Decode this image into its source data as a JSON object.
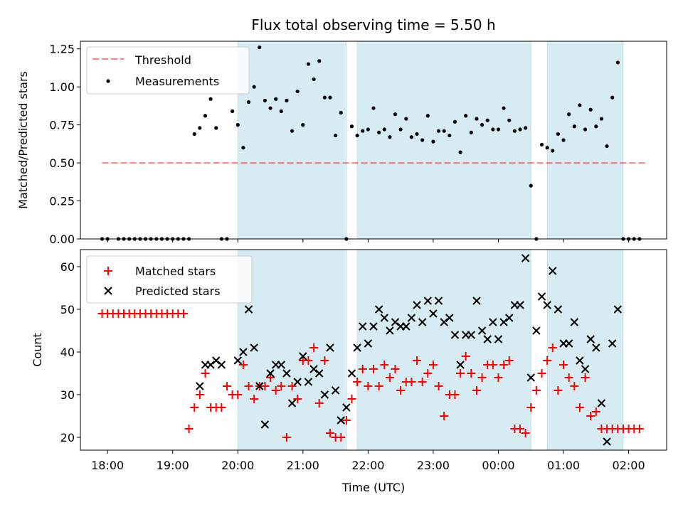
{
  "title": "Flux total observing time = 5.50 h",
  "colors": {
    "shade": "#add8e6",
    "threshold": "#ff0000",
    "measurement": "#000000",
    "matched": "#ff0000",
    "predicted": "#000000"
  },
  "chart_data": [
    {
      "type": "scatter",
      "panel": "top",
      "ylabel": "Matched/Predicted stars",
      "xlabel": "",
      "ylim": [
        0,
        1.3
      ],
      "yticks": [
        0.0,
        0.25,
        0.5,
        0.75,
        1.0,
        1.25
      ],
      "ytick_labels": [
        "0.00",
        "0.25",
        "0.50",
        "0.75",
        "1.00",
        "1.25"
      ],
      "legend": {
        "placement": "top-left",
        "entries": [
          "Threshold",
          "Measurements"
        ]
      },
      "threshold": {
        "name": "Threshold",
        "y": 0.5,
        "x_range": [
          "17:55",
          "02:15"
        ],
        "style": "dashed"
      },
      "shaded_intervals": [
        [
          "20:00",
          "21:40"
        ],
        [
          "21:50",
          "00:30"
        ],
        [
          "00:45",
          "01:55"
        ]
      ],
      "series": [
        {
          "name": "Measurements",
          "x": [
            "17:55",
            "18:00",
            "18:10",
            "18:15",
            "18:20",
            "18:25",
            "18:30",
            "18:35",
            "18:40",
            "18:45",
            "18:50",
            "18:55",
            "19:00",
            "19:05",
            "19:10",
            "19:15",
            "19:20",
            "19:25",
            "19:30",
            "19:35",
            "19:40",
            "19:45",
            "19:50",
            "19:55",
            "20:00",
            "20:05",
            "20:10",
            "20:15",
            "20:20",
            "20:25",
            "20:30",
            "20:35",
            "20:40",
            "20:45",
            "20:50",
            "20:55",
            "21:00",
            "21:05",
            "21:10",
            "21:15",
            "21:20",
            "21:25",
            "21:30",
            "21:35",
            "21:40",
            "21:45",
            "21:50",
            "21:55",
            "22:00",
            "22:05",
            "22:10",
            "22:15",
            "22:20",
            "22:25",
            "22:30",
            "22:35",
            "22:40",
            "22:45",
            "22:50",
            "22:55",
            "23:00",
            "23:05",
            "23:10",
            "23:15",
            "23:20",
            "23:25",
            "23:30",
            "23:35",
            "23:40",
            "23:45",
            "23:50",
            "23:55",
            "00:00",
            "00:05",
            "00:10",
            "00:15",
            "00:20",
            "00:25",
            "00:30",
            "00:35",
            "00:40",
            "00:45",
            "00:50",
            "00:55",
            "01:00",
            "01:05",
            "01:10",
            "01:15",
            "01:20",
            "01:25",
            "01:30",
            "01:35",
            "01:40",
            "01:45",
            "01:50",
            "01:55",
            "02:00",
            "02:05",
            "02:10"
          ],
          "y": [
            0,
            0,
            0,
            0,
            0,
            0,
            0,
            0,
            0,
            0,
            0,
            0,
            0,
            0,
            0,
            0,
            0.69,
            0.73,
            0.81,
            0.92,
            0.73,
            0,
            0,
            0.84,
            0.75,
            0.6,
            0.9,
            1.0,
            1.26,
            0.91,
            0.86,
            0.92,
            0.84,
            0.91,
            0.71,
            0.97,
            0.75,
            1.15,
            1.05,
            1.17,
            0.93,
            0.93,
            0.68,
            0.83,
            0,
            0.74,
            0.68,
            0.71,
            0.72,
            0.86,
            0.7,
            0.72,
            0.67,
            0.82,
            0.72,
            0.79,
            0.67,
            0.69,
            0.65,
            0.81,
            0.64,
            0.71,
            0.71,
            0.68,
            0.77,
            0.57,
            0.81,
            0.7,
            0.79,
            0.75,
            0.78,
            0.72,
            0.72,
            0.86,
            0.78,
            0.71,
            0.72,
            0.73,
            0.35,
            0,
            0.62,
            0.6,
            0.58,
            0.69,
            0.65,
            0.82,
            0.74,
            0.88,
            0.72,
            0.85,
            0.74,
            0.79,
            0.61,
            0.93,
            1.16,
            0,
            0,
            0,
            0
          ]
        }
      ]
    },
    {
      "type": "scatter",
      "panel": "bottom",
      "xlabel": "Time (UTC)",
      "ylabel": "Count",
      "ylim": [
        17,
        64
      ],
      "yticks": [
        20,
        30,
        40,
        50,
        60
      ],
      "ytick_labels": [
        "20",
        "30",
        "40",
        "50",
        "60"
      ],
      "xticks": [
        "18:00",
        "19:00",
        "20:00",
        "21:00",
        "22:00",
        "23:00",
        "00:00",
        "01:00",
        "02:00"
      ],
      "xlim": [
        "17:35",
        "02:35"
      ],
      "legend": {
        "placement": "top-left",
        "entries": [
          "Matched stars",
          "Predicted stars"
        ]
      },
      "shaded_intervals": [
        [
          "20:00",
          "21:40"
        ],
        [
          "21:50",
          "00:30"
        ],
        [
          "00:45",
          "01:55"
        ]
      ],
      "series": [
        {
          "name": "Matched stars",
          "marker": "plus",
          "x": [
            "17:55",
            "18:00",
            "18:05",
            "18:10",
            "18:15",
            "18:20",
            "18:25",
            "18:30",
            "18:35",
            "18:40",
            "18:45",
            "18:50",
            "18:55",
            "19:00",
            "19:05",
            "19:10",
            "19:15",
            "19:20",
            "19:25",
            "19:30",
            "19:35",
            "19:40",
            "19:45",
            "19:50",
            "19:55",
            "20:00",
            "20:05",
            "20:10",
            "20:15",
            "20:20",
            "20:25",
            "20:30",
            "20:35",
            "20:40",
            "20:45",
            "20:50",
            "20:55",
            "21:00",
            "21:05",
            "21:10",
            "21:15",
            "21:20",
            "21:25",
            "21:30",
            "21:35",
            "21:40",
            "21:45",
            "21:50",
            "21:55",
            "22:00",
            "22:05",
            "22:10",
            "22:15",
            "22:20",
            "22:25",
            "22:30",
            "22:35",
            "22:40",
            "22:45",
            "22:50",
            "22:55",
            "23:00",
            "23:05",
            "23:10",
            "23:15",
            "23:20",
            "23:25",
            "23:30",
            "23:35",
            "23:40",
            "23:45",
            "23:50",
            "23:55",
            "00:00",
            "00:05",
            "00:10",
            "00:15",
            "00:20",
            "00:25",
            "00:30",
            "00:35",
            "00:40",
            "00:45",
            "00:50",
            "00:55",
            "01:00",
            "01:05",
            "01:10",
            "01:15",
            "01:20",
            "01:25",
            "01:30",
            "01:35",
            "01:40",
            "01:45",
            "01:50",
            "01:55",
            "02:00",
            "02:05",
            "02:10"
          ],
          "y": [
            49,
            49,
            49,
            49,
            49,
            49,
            49,
            49,
            49,
            49,
            49,
            49,
            49,
            49,
            49,
            49,
            22,
            27,
            30,
            35,
            27,
            27,
            27,
            32,
            30,
            30,
            37,
            32,
            29,
            32,
            32,
            34,
            31,
            32,
            20,
            32,
            29,
            38,
            38,
            41,
            28,
            38,
            21,
            20,
            20,
            24,
            29,
            33,
            36,
            32,
            36,
            32,
            37,
            34,
            36,
            31,
            33,
            33,
            38,
            33,
            35,
            37,
            32,
            25,
            30,
            30,
            35,
            39,
            35,
            31,
            34,
            37,
            37,
            34,
            37,
            38,
            22,
            22,
            21,
            27,
            31,
            35,
            38,
            41,
            31,
            37,
            34,
            32,
            27,
            34,
            25,
            26,
            22,
            22,
            22,
            22,
            22,
            22,
            22,
            22
          ],
          "note_points": "matched"
        },
        {
          "name": "Predicted stars",
          "marker": "x",
          "x": [
            "19:25",
            "19:30",
            "19:35",
            "19:40",
            "19:45",
            "20:00",
            "20:05",
            "20:10",
            "20:15",
            "20:20",
            "20:25",
            "20:30",
            "20:35",
            "20:40",
            "20:45",
            "20:50",
            "20:55",
            "21:00",
            "21:05",
            "21:10",
            "21:15",
            "21:20",
            "21:25",
            "21:30",
            "21:35",
            "21:40",
            "21:45",
            "21:50",
            "21:55",
            "22:00",
            "22:05",
            "22:10",
            "22:15",
            "22:20",
            "22:25",
            "22:30",
            "22:35",
            "22:40",
            "22:45",
            "22:50",
            "22:55",
            "23:00",
            "23:05",
            "23:10",
            "23:15",
            "23:20",
            "23:25",
            "23:30",
            "23:35",
            "23:40",
            "23:45",
            "23:50",
            "23:55",
            "00:00",
            "00:05",
            "00:10",
            "00:15",
            "00:20",
            "00:25",
            "00:30",
            "00:35",
            "00:40",
            "00:45",
            "00:50",
            "00:55",
            "01:00",
            "01:05",
            "01:10",
            "01:15",
            "01:20",
            "01:25",
            "01:30",
            "01:35",
            "01:40",
            "01:45",
            "01:50"
          ],
          "y": [
            32,
            37,
            37,
            38,
            37,
            38,
            40,
            50,
            41,
            32,
            23,
            35,
            37,
            37,
            35,
            28,
            33,
            39,
            33,
            36,
            35,
            30,
            41,
            31,
            24,
            27,
            35,
            41,
            46,
            42,
            46,
            50,
            48,
            45,
            47,
            46,
            46,
            48,
            51,
            47,
            52,
            49,
            52,
            47,
            48,
            44,
            37,
            44,
            44,
            52,
            45,
            43,
            47,
            43,
            47,
            48,
            51,
            51,
            62,
            34,
            45,
            53,
            51,
            59,
            50,
            42,
            42,
            47,
            38,
            36,
            43,
            41,
            28,
            19,
            42,
            50
          ],
          "note_points": "predicted"
        }
      ]
    }
  ]
}
